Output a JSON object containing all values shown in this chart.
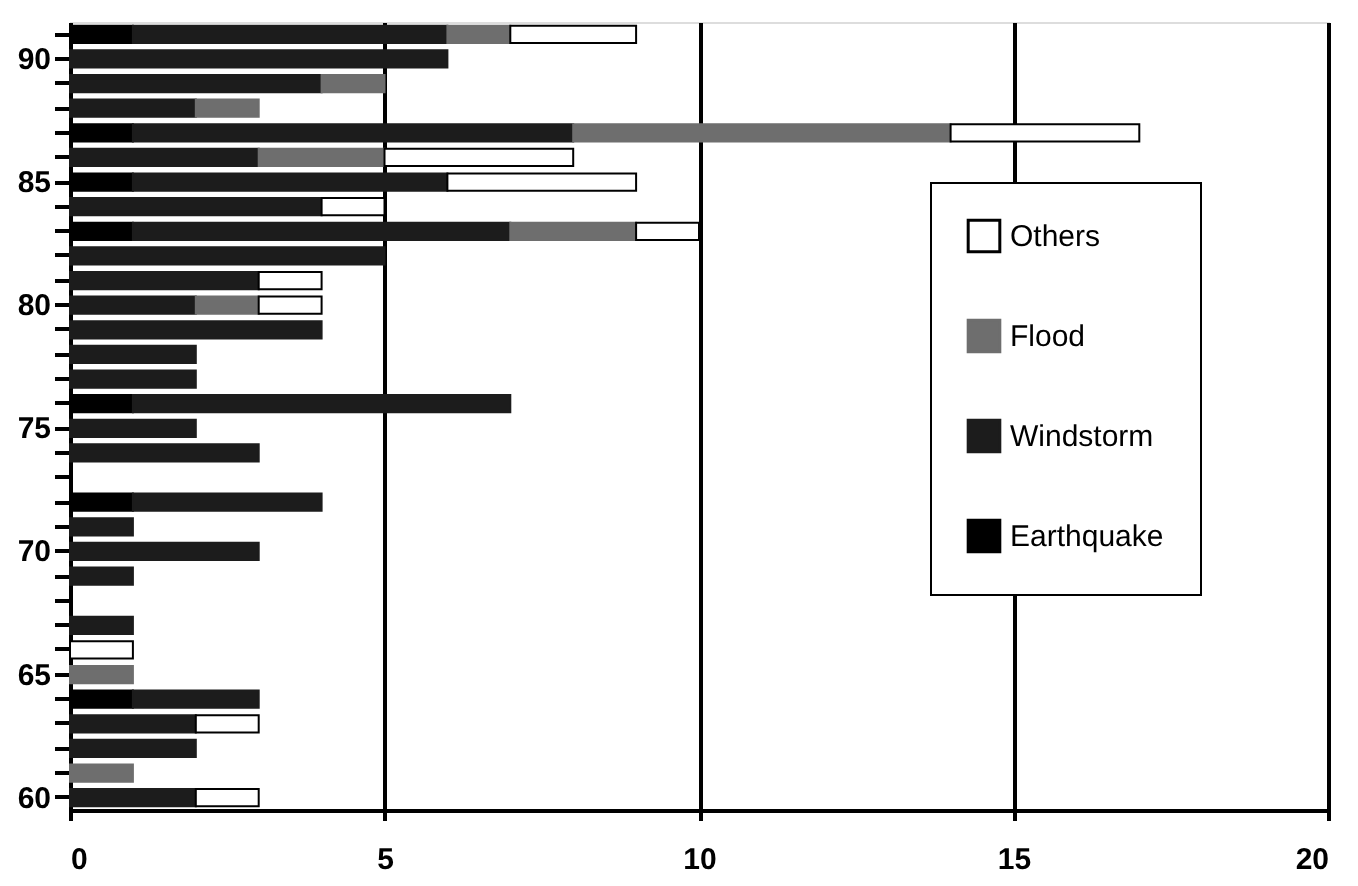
{
  "chart_data": {
    "type": "bar",
    "orientation": "horizontal",
    "stacked": true,
    "categories": [
      null,
      "90",
      null,
      null,
      null,
      null,
      "85",
      null,
      null,
      null,
      null,
      "80",
      null,
      null,
      null,
      null,
      "75",
      null,
      null,
      null,
      null,
      "70",
      null,
      null,
      null,
      null,
      "65",
      null,
      null,
      null,
      null,
      "60"
    ],
    "series": [
      {
        "name": "Earthquake",
        "color": "#000000",
        "values": [
          1,
          0,
          0,
          0,
          1,
          0,
          1,
          0,
          1,
          0,
          0,
          0,
          0,
          0,
          0,
          1,
          0,
          0,
          0,
          1,
          0,
          0,
          0,
          0,
          0,
          0,
          0,
          1,
          0,
          0,
          0,
          0
        ]
      },
      {
        "name": "Windstorm",
        "color": "#1c1c1c",
        "values": [
          5,
          6,
          4,
          2,
          7,
          3,
          5,
          4,
          6,
          5,
          3,
          2,
          4,
          2,
          2,
          6,
          2,
          3,
          0,
          3,
          1,
          3,
          1,
          0,
          1,
          0,
          0,
          2,
          2,
          2,
          0,
          2
        ]
      },
      {
        "name": "Flood",
        "color": "#6e6e6e",
        "values": [
          1,
          0,
          1,
          1,
          6,
          2,
          0,
          0,
          2,
          0,
          0,
          1,
          0,
          0,
          0,
          0,
          0,
          0,
          0,
          0,
          0,
          0,
          0,
          0,
          0,
          0,
          1,
          0,
          0,
          0,
          1,
          0
        ]
      },
      {
        "name": "Others",
        "color": "#ffffff",
        "values": [
          2,
          0,
          0,
          0,
          3,
          3,
          3,
          1,
          1,
          0,
          1,
          1,
          0,
          0,
          0,
          0,
          0,
          0,
          0,
          0,
          0,
          0,
          0,
          0,
          0,
          1,
          0,
          0,
          1,
          0,
          0,
          1
        ]
      }
    ],
    "xlim": [
      0,
      20
    ],
    "xticks": [
      0,
      5,
      10,
      15,
      20
    ],
    "grid": "x",
    "legend": "right"
  }
}
